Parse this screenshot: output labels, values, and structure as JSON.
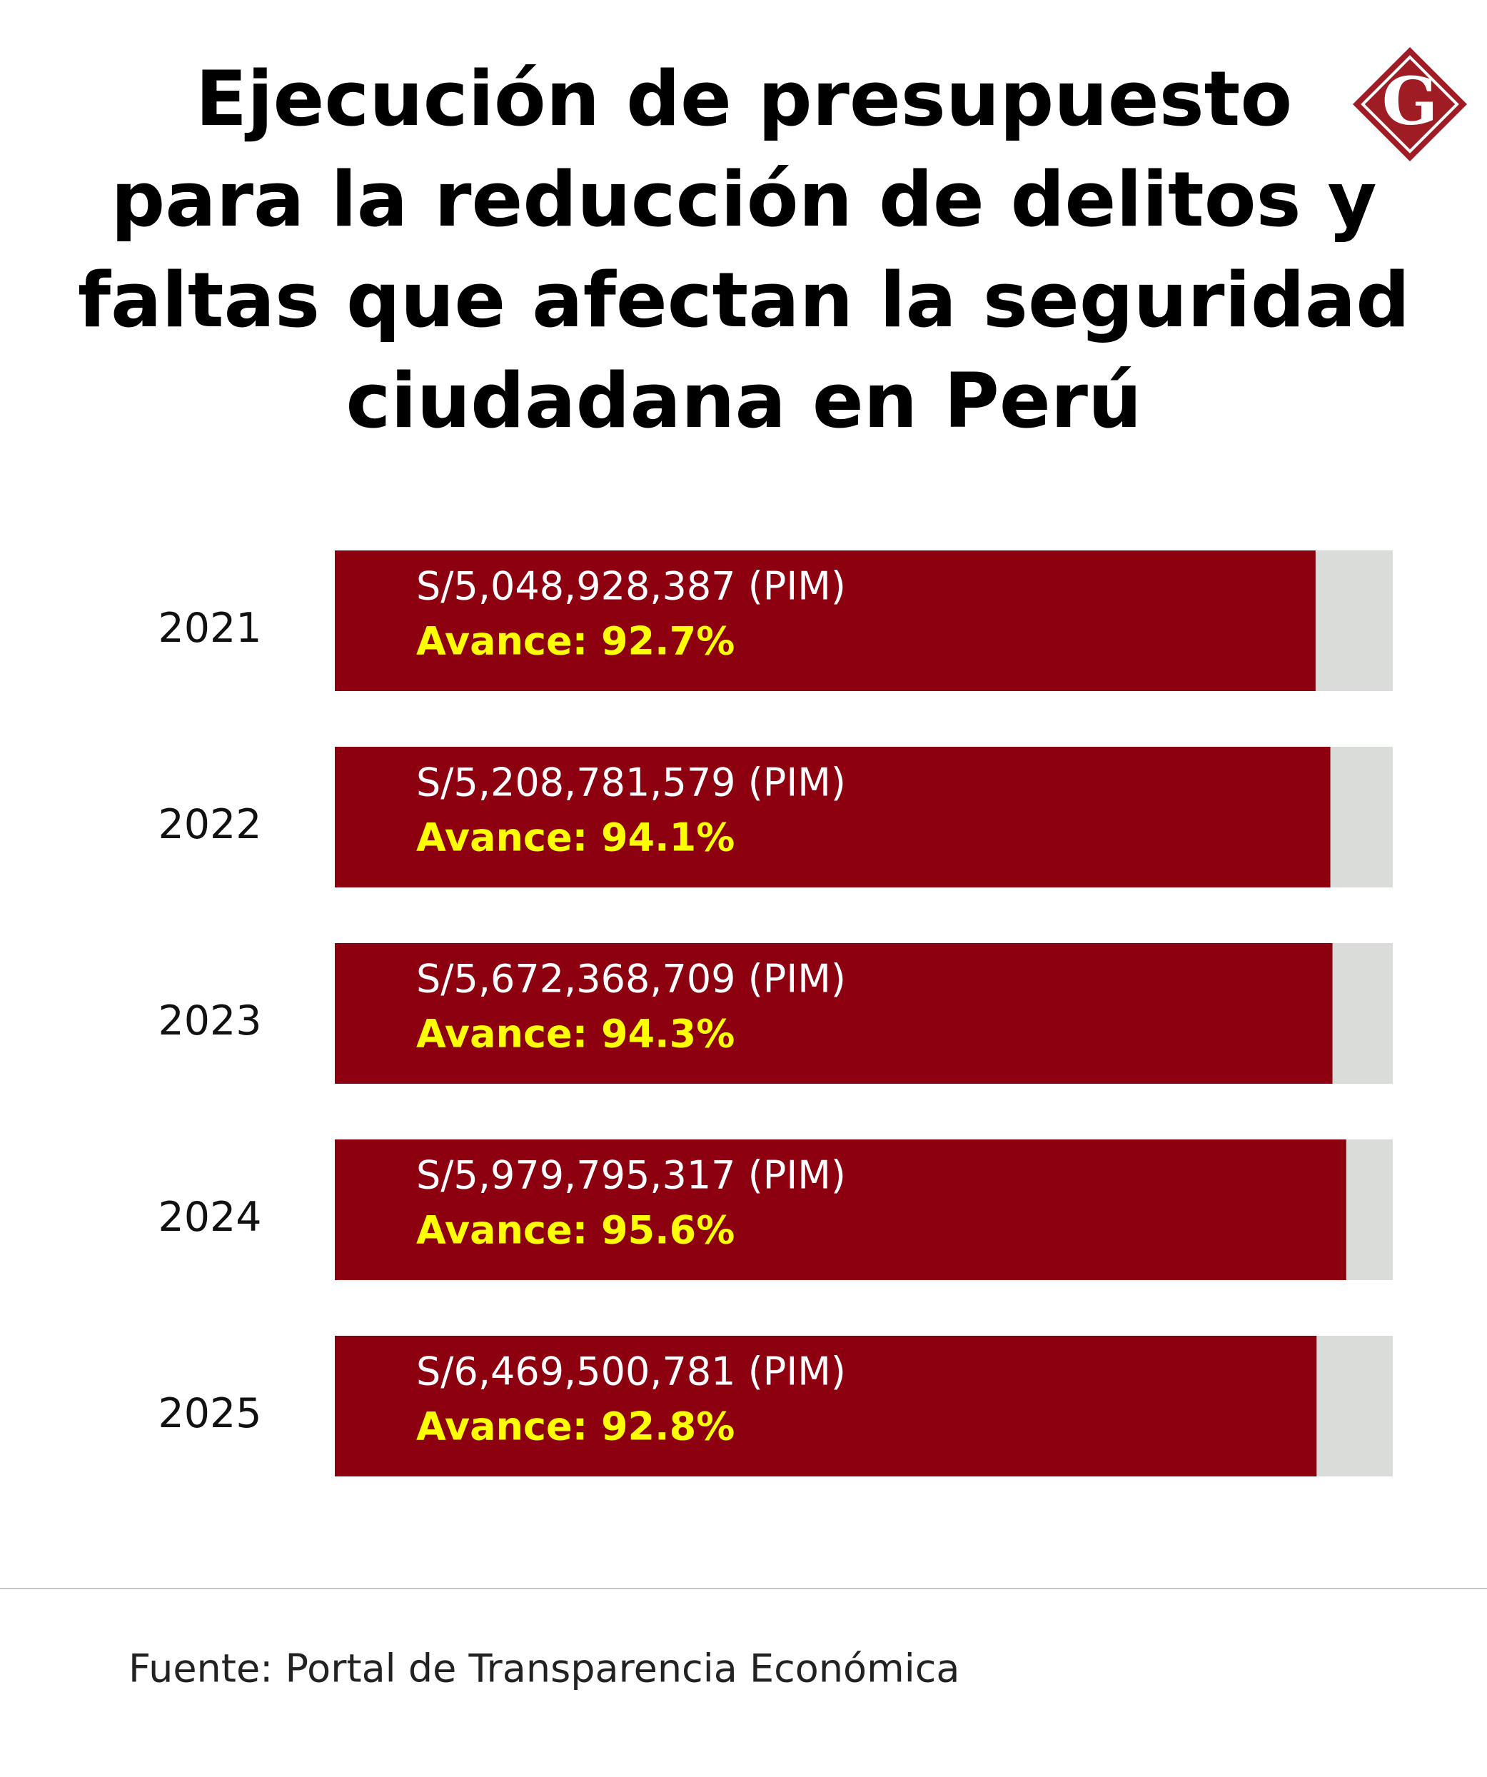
{
  "chart_data": {
    "type": "bar",
    "orientation": "horizontal",
    "title": [
      "Ejecución de presupuesto",
      "para la reducción de delitos y",
      "faltas que afectan la seguridad",
      "ciudadana en Perú"
    ],
    "categories": [
      "2021",
      "2022",
      "2023",
      "2024",
      "2025"
    ],
    "values": [
      92.7,
      94.1,
      94.3,
      95.6,
      92.8
    ],
    "value_labels": [
      "Avance: 92.7%",
      "Avance: 94.1%",
      "Avance: 94.3%",
      "Avance: 95.6%",
      "Avance: 92.8%"
    ],
    "amount_labels": [
      "S/5,048,928,387 (PIM)",
      "S/5,208,781,579 (PIM)",
      "S/5,672,368,709 (PIM)",
      "S/5,979,795,317 (PIM)",
      "S/6,469,500,781 (PIM)"
    ],
    "xlim": [
      0,
      100
    ],
    "color": "#8c000f",
    "track_color": "#d9dcd8",
    "label_color": "#ffff00"
  },
  "logo": "G",
  "source": "Fuente: Portal de Transparencia Económica"
}
